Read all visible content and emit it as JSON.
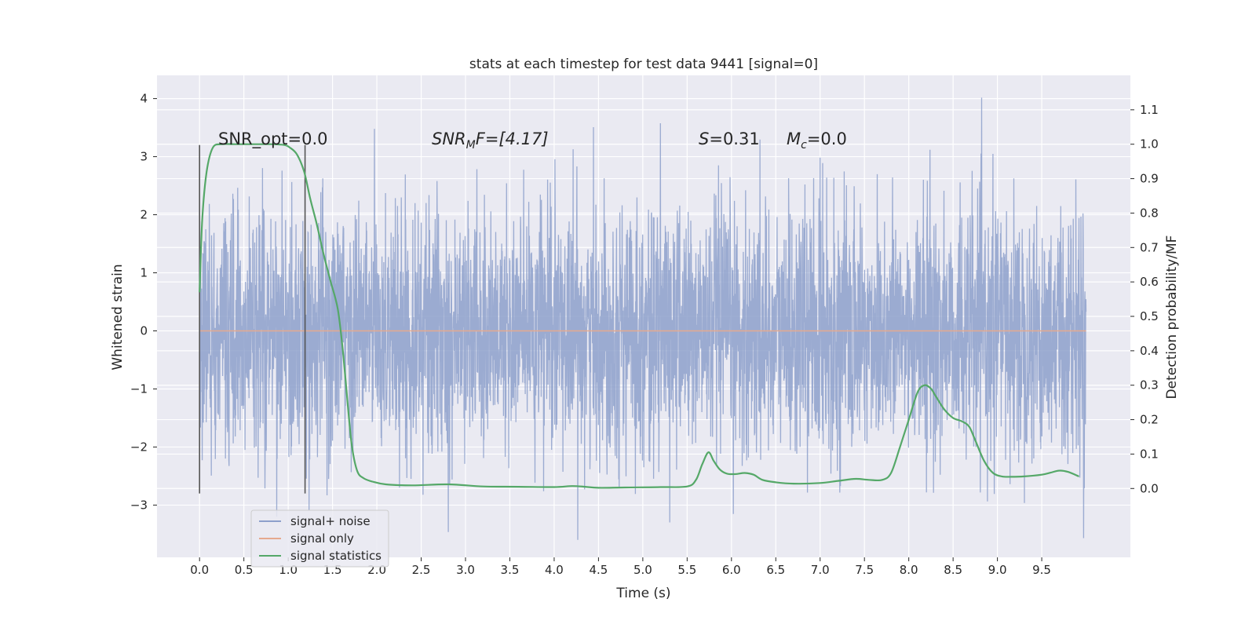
{
  "chart_data": {
    "type": "line",
    "title": "stats at each timestep for test data 9441 [signal=0]",
    "xlabel": "Time (s)",
    "ylabel_left": "Whitened strain",
    "ylabel_right": "Detection probability/MF",
    "xlim": [
      -0.48,
      10.5
    ],
    "ylim_left": [
      -3.9,
      4.4
    ],
    "ylim_right": [
      -0.2,
      1.2
    ],
    "x_ticks": [
      "0.0",
      "0.5",
      "1.0",
      "1.5",
      "2.0",
      "2.5",
      "3.0",
      "3.5",
      "4.0",
      "4.5",
      "5.0",
      "5.5",
      "6.0",
      "6.5",
      "7.0",
      "7.5",
      "8.0",
      "8.5",
      "9.0",
      "9.5"
    ],
    "y_ticks_left": [
      "−3",
      "−2",
      "−1",
      "0",
      "1",
      "2",
      "3",
      "4"
    ],
    "y_ticks_right": [
      "0.0",
      "0.1",
      "0.2",
      "0.3",
      "0.4",
      "0.5",
      "0.6",
      "0.7",
      "0.8",
      "0.9",
      "1.0",
      "1.1"
    ],
    "grid": true,
    "legend_position": "lower-left",
    "annotations": {
      "snr_opt": "SNR_opt=0.0",
      "snr_mf_base": "SNR",
      "snr_mf_sub": "M",
      "snr_mf_rest": "F=[4.17]",
      "s_var": "S",
      "s_rest": "=0.31",
      "mc_var": "M",
      "mc_sub": "c",
      "mc_rest": "=0.0"
    },
    "vertical_lines": [
      {
        "x": 0.0,
        "y_range": [
          -2.8,
          3.2
        ]
      },
      {
        "x": 1.19,
        "y_range": [
          -2.8,
          3.2
        ]
      }
    ],
    "series": [
      {
        "name": "signal+ noise",
        "color": "#8da0cb",
        "x_range": [
          0.0,
          10.0
        ],
        "sample_rate": 2048,
        "mean": 0.0,
        "std": 1.0,
        "min": -3.6,
        "max": 4.05
      },
      {
        "name": "signal only",
        "color": "#e5a98e",
        "x": [
          0.0,
          10.0
        ],
        "y": [
          0.0,
          0.0
        ]
      },
      {
        "name": "signal statistics",
        "color": "#55a868",
        "axis": "right",
        "x": [
          0.0,
          0.03,
          0.08,
          0.15,
          0.25,
          0.4,
          0.6,
          0.8,
          0.95,
          1.02,
          1.1,
          1.18,
          1.25,
          1.32,
          1.4,
          1.48,
          1.56,
          1.62,
          1.68,
          1.72,
          1.78,
          1.85,
          1.95,
          2.1,
          2.4,
          2.8,
          3.2,
          3.6,
          4.0,
          4.2,
          4.35,
          4.5,
          4.8,
          5.2,
          5.5,
          5.6,
          5.67,
          5.74,
          5.8,
          5.87,
          5.95,
          6.05,
          6.15,
          6.25,
          6.35,
          6.5,
          6.7,
          7.0,
          7.2,
          7.4,
          7.55,
          7.7,
          7.8,
          7.9,
          8.0,
          8.1,
          8.18,
          8.25,
          8.3,
          8.4,
          8.5,
          8.6,
          8.68,
          8.75,
          8.85,
          8.95,
          9.05,
          9.15,
          9.3,
          9.5,
          9.6,
          9.7,
          9.8,
          9.92
        ],
        "y": [
          0.57,
          0.78,
          0.92,
          0.99,
          1.0,
          1.0,
          1.0,
          1.0,
          0.998,
          0.99,
          0.97,
          0.92,
          0.84,
          0.77,
          0.68,
          0.6,
          0.52,
          0.39,
          0.22,
          0.12,
          0.05,
          0.03,
          0.02,
          0.012,
          0.009,
          0.012,
          0.006,
          0.005,
          0.004,
          0.007,
          0.005,
          0.002,
          0.003,
          0.004,
          0.006,
          0.025,
          0.07,
          0.105,
          0.08,
          0.055,
          0.043,
          0.042,
          0.045,
          0.04,
          0.025,
          0.018,
          0.014,
          0.016,
          0.022,
          0.028,
          0.025,
          0.025,
          0.045,
          0.12,
          0.2,
          0.28,
          0.3,
          0.29,
          0.27,
          0.23,
          0.205,
          0.195,
          0.18,
          0.14,
          0.08,
          0.045,
          0.035,
          0.034,
          0.035,
          0.04,
          0.046,
          0.052,
          0.048,
          0.035
        ]
      }
    ]
  }
}
